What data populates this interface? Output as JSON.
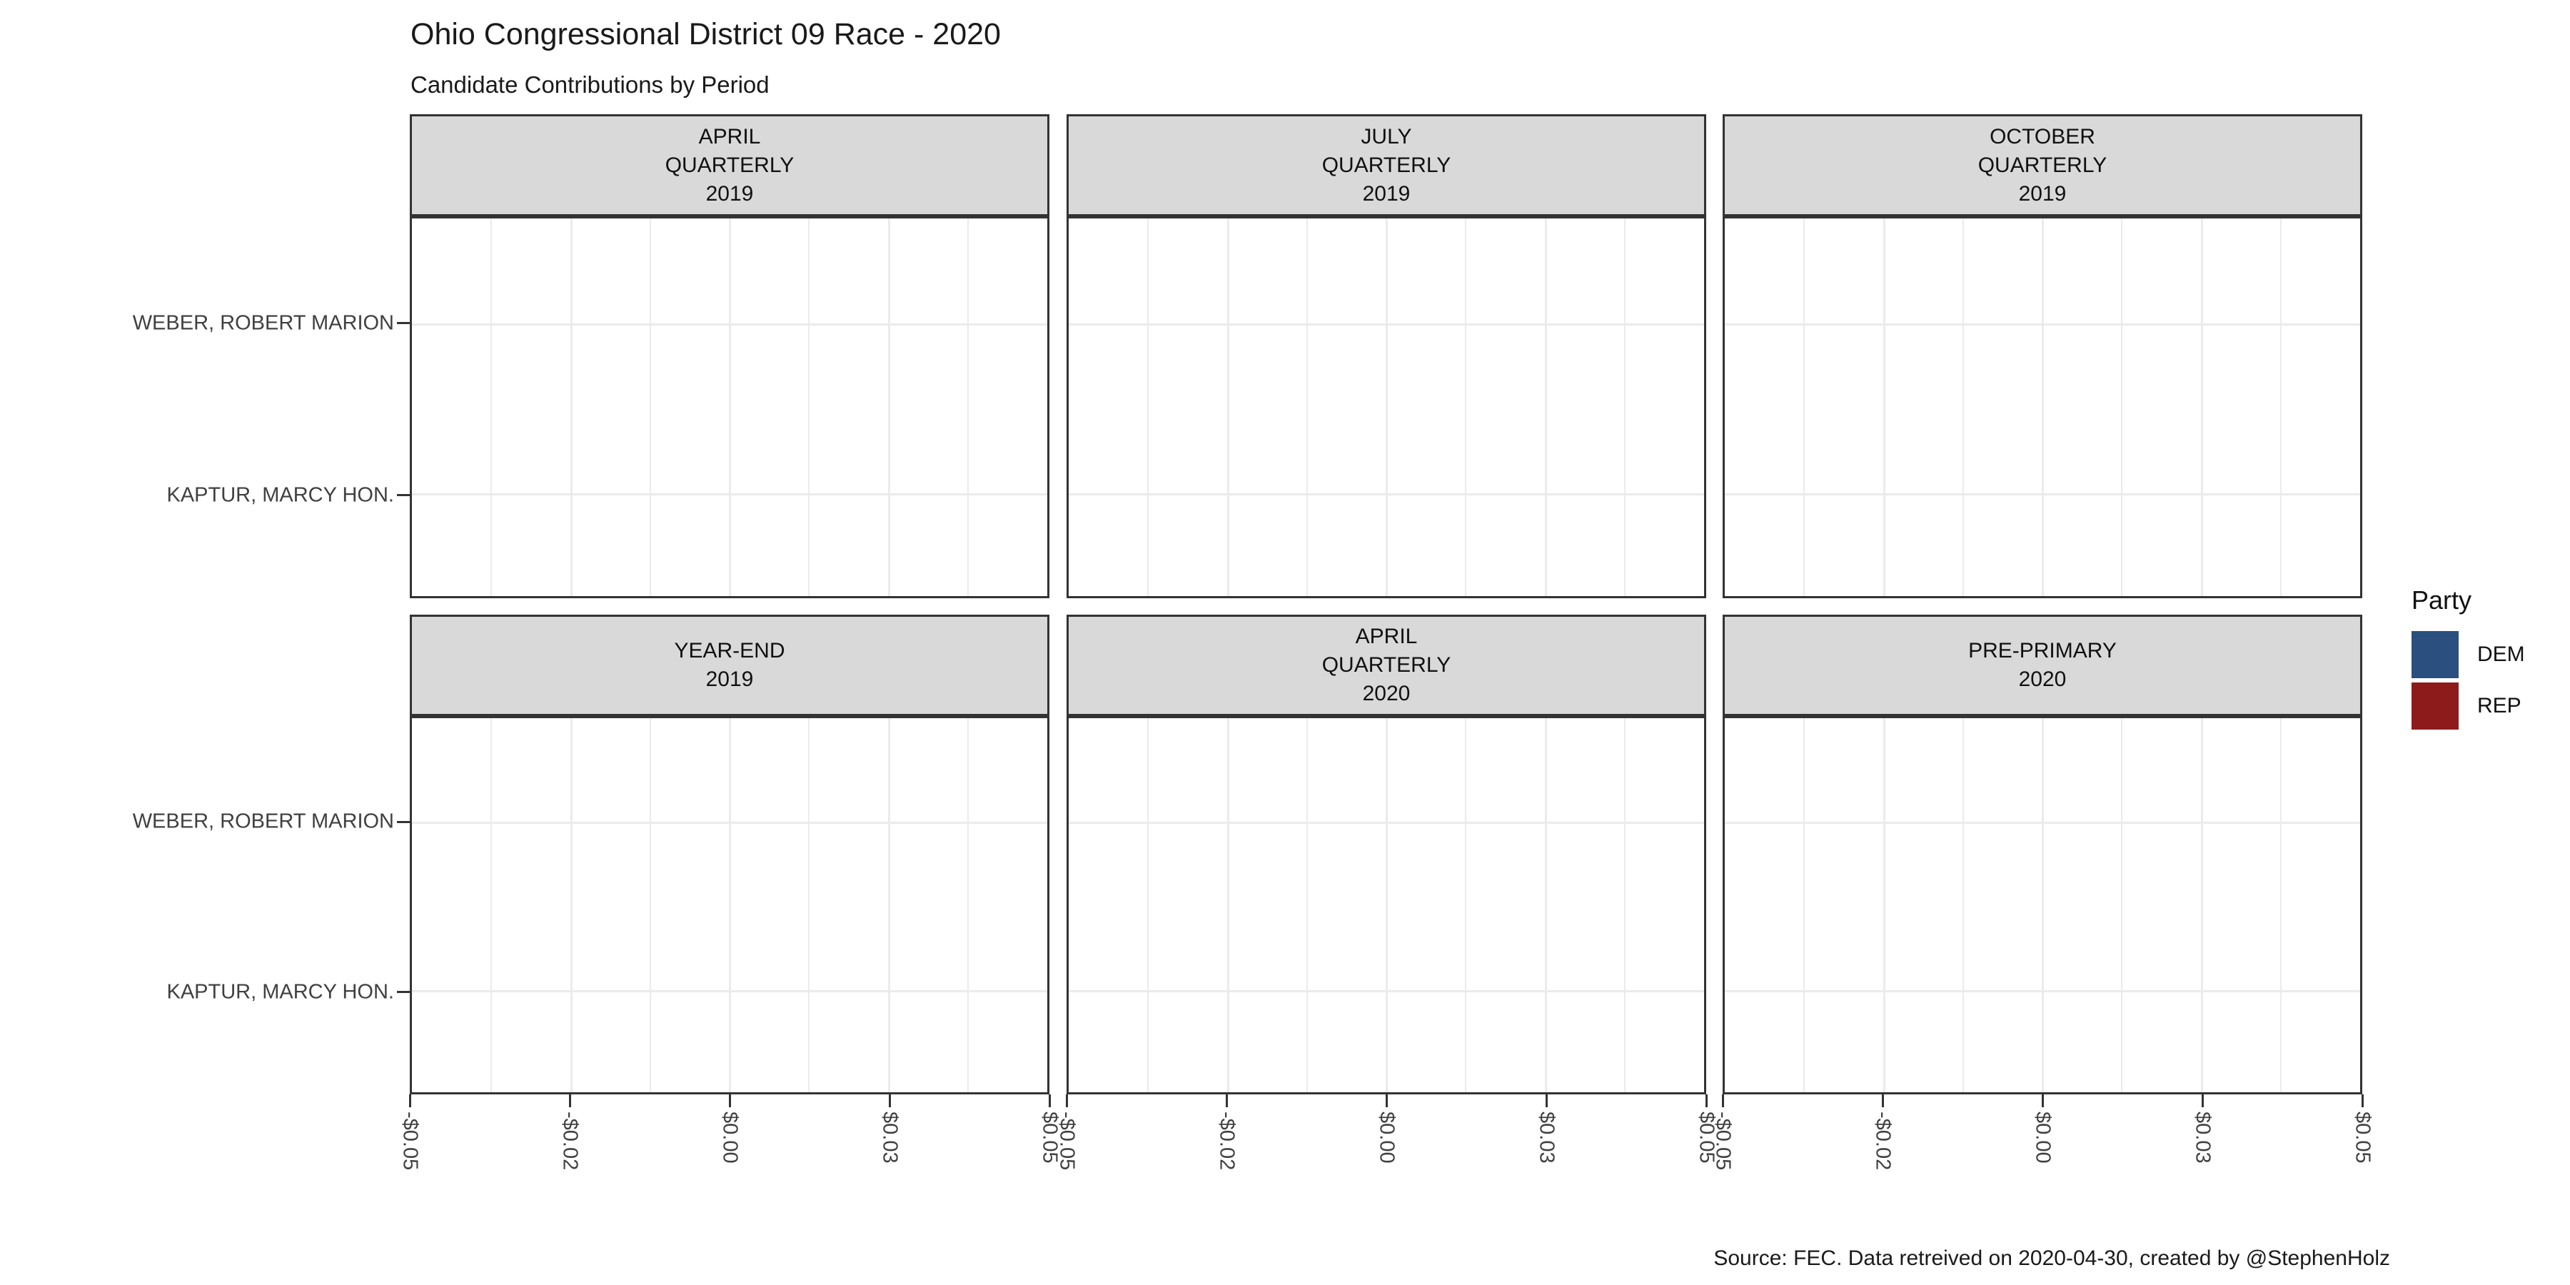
{
  "title": "Ohio Congressional District 09 Race - 2020",
  "subtitle": "Candidate Contributions by Period",
  "caption": "Source: FEC. Data retreived on 2020-04-30, created by @StephenHolz",
  "legend": {
    "title": "Party",
    "items": [
      {
        "label": "DEM",
        "color": "#2b4f7e"
      },
      {
        "label": "REP",
        "color": "#8e1b1b"
      }
    ]
  },
  "chart_data": {
    "type": "bar",
    "orientation": "horizontal",
    "title": "Ohio Congressional District 09 Race - 2020",
    "subtitle": "Candidate Contributions by Period",
    "xlabel": "",
    "ylabel": "",
    "grid": true,
    "legend_position": "right",
    "xlim": [
      -0.05,
      0.05
    ],
    "categories": [
      "WEBER, ROBERT MARION",
      "KAPTUR, MARCY HON."
    ],
    "x_ticks": [
      {
        "value": -0.05,
        "label": "-$0.05"
      },
      {
        "value": -0.025,
        "label": "-$0.02"
      },
      {
        "value": 0.0,
        "label": "$0.00"
      },
      {
        "value": 0.025,
        "label": "$0.03"
      },
      {
        "value": 0.05,
        "label": "$0.05"
      }
    ],
    "facets": [
      {
        "period": "APRIL QUARTERLY 2019",
        "strip_lines": [
          "APRIL",
          "QUARTERLY",
          "2019"
        ],
        "values": [
          0,
          0
        ]
      },
      {
        "period": "JULY QUARTERLY 2019",
        "strip_lines": [
          "JULY",
          "QUARTERLY",
          "2019"
        ],
        "values": [
          0,
          0
        ]
      },
      {
        "period": "OCTOBER QUARTERLY 2019",
        "strip_lines": [
          "OCTOBER",
          "QUARTERLY",
          "2019"
        ],
        "values": [
          0,
          0
        ]
      },
      {
        "period": "YEAR-END 2019",
        "strip_lines": [
          "YEAR-END",
          "2019"
        ],
        "values": [
          0,
          0
        ]
      },
      {
        "period": "APRIL QUARTERLY 2020",
        "strip_lines": [
          "APRIL",
          "QUARTERLY",
          "2020"
        ],
        "values": [
          0,
          0
        ]
      },
      {
        "period": "PRE-PRIMARY 2020",
        "strip_lines": [
          "PRE-PRIMARY",
          "2020"
        ],
        "values": [
          0,
          0
        ]
      }
    ]
  }
}
